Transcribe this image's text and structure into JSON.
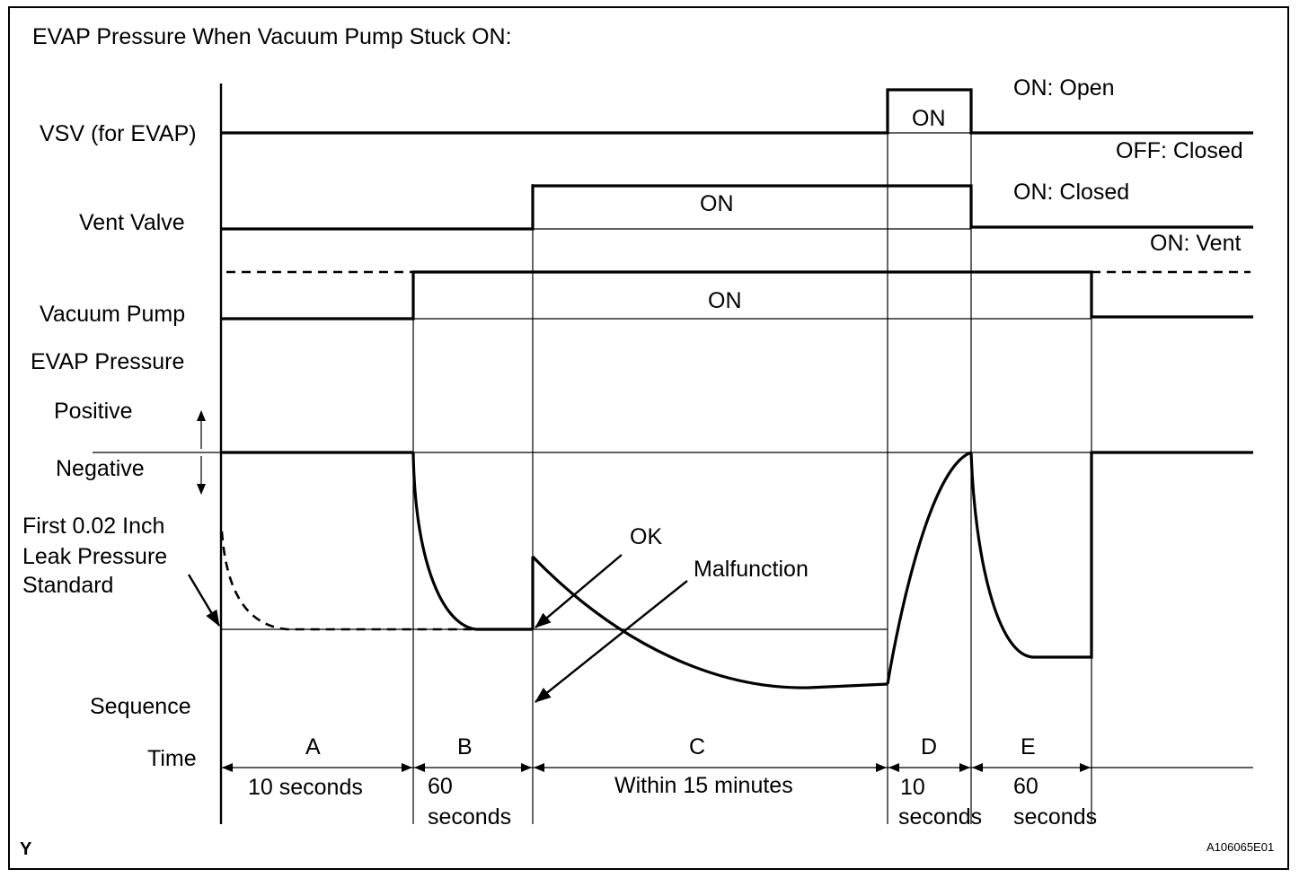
{
  "title": "EVAP Pressure When Vacuum Pump Stuck ON:",
  "signals": {
    "vsv": {
      "label": "VSV (for EVAP)",
      "on_text": "ON",
      "on_state": "ON: Open",
      "off_state": "OFF: Closed"
    },
    "vent_valve": {
      "label": "Vent Valve",
      "on_text": "ON",
      "on_state": "ON: Closed",
      "off_state": "ON: Vent"
    },
    "vacuum_pump": {
      "label": "Vacuum Pump",
      "on_text": "ON"
    }
  },
  "pressure": {
    "label": "EVAP Pressure",
    "positive": "Positive",
    "negative": "Negative",
    "standard_label": [
      "First 0.02 Inch",
      "Leak Pressure",
      "Standard"
    ],
    "ok_label": "OK",
    "malfunction_label": "Malfunction"
  },
  "sequence": {
    "label": "Sequence",
    "time_label": "Time",
    "steps": [
      {
        "code": "A",
        "duration": [
          "10 seconds"
        ]
      },
      {
        "code": "B",
        "duration": [
          "60",
          "seconds"
        ]
      },
      {
        "code": "C",
        "duration": [
          "Within 15 minutes"
        ]
      },
      {
        "code": "D",
        "duration": [
          "10",
          "seconds"
        ]
      },
      {
        "code": "E",
        "duration": [
          "60",
          "seconds"
        ]
      }
    ]
  },
  "footer": {
    "left_mark": "Y",
    "figure_id": "A106065E01"
  }
}
